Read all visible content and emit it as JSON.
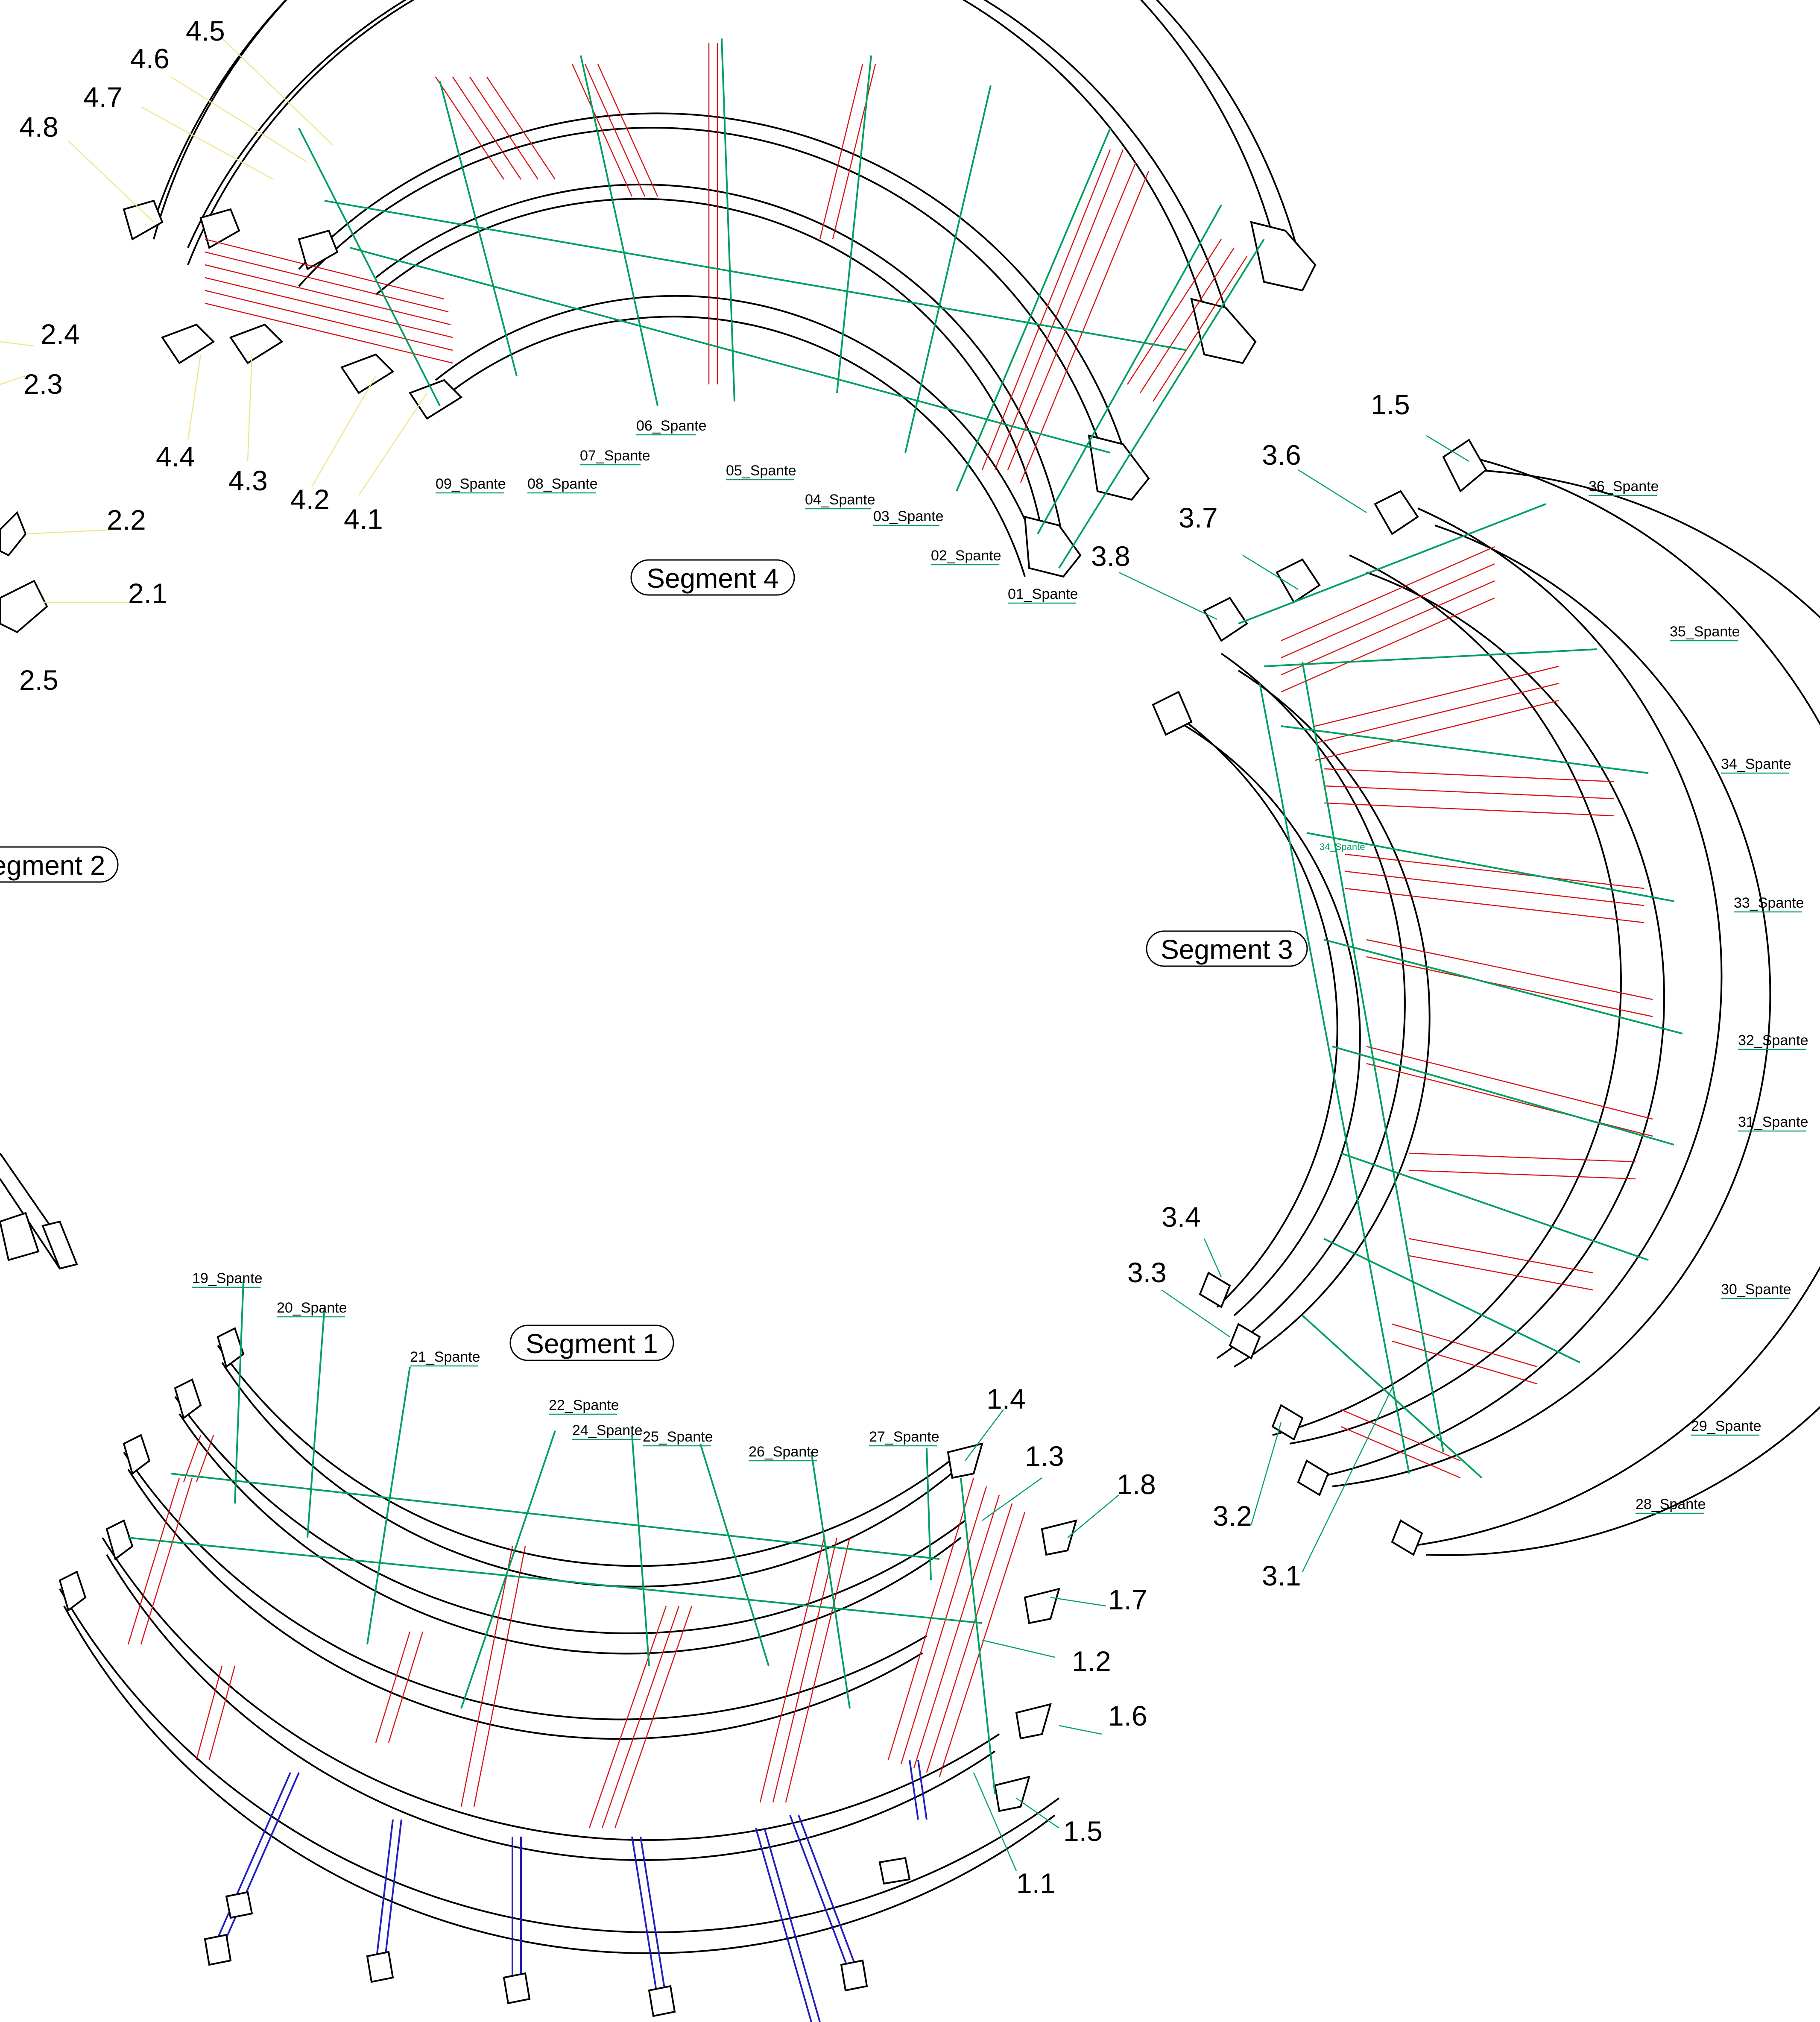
{
  "segments": {
    "seg1": "Segment 1",
    "seg2": "egment 2",
    "seg3": "Segment 3",
    "seg4": "Segment 4"
  },
  "labels": {
    "l4_5": "4.5",
    "l4_6": "4.6",
    "l4_7": "4.7",
    "l4_8": "4.8",
    "l2_4": "2.4",
    "l2_3": "2.3",
    "l2_2": "2.2",
    "l2_1": "2.1",
    "l2_5": "2.5",
    "l4_4": "4.4",
    "l4_3": "4.3",
    "l4_2": "4.2",
    "l4_1": "4.1",
    "l1_5a": "1.5",
    "l3_6": "3.6",
    "l3_7": "3.7",
    "l3_8": "3.8",
    "l3_4": "3.4",
    "l3_3": "3.3",
    "l3_2": "3.2",
    "l3_1": "3.1",
    "l1_4": "1.4",
    "l1_3": "1.3",
    "l1_8": "1.8",
    "l1_7": "1.7",
    "l1_2": "1.2",
    "l1_6": "1.6",
    "l1_5b": "1.5",
    "l1_1": "1.1"
  },
  "spante": {
    "s01": "01_Spante",
    "s02": "02_Spante",
    "s03": "03_Spante",
    "s04": "04_Spante",
    "s05": "05_Spante",
    "s06": "06_Spante",
    "s07": "07_Spante",
    "s08": "08_Spante",
    "s09": "09_Spante",
    "s19": "19_Spante",
    "s20": "20_Spante",
    "s21": "21_Spante",
    "s22": "22_Spante",
    "s24": "24_Spante",
    "s25": "25_Spante",
    "s26": "26_Spante",
    "s27": "27_Spante",
    "s28": "28_Spante",
    "s29": "29_Spante",
    "s30": "30_Spante",
    "s31": "31_Spante",
    "s32": "32_Spante",
    "s33": "33_Spante",
    "s34": "34_Spante",
    "s34b": "34_Spante",
    "s35": "35_Spante",
    "s36": "36_Spante"
  },
  "colors": {
    "frame": "#000000",
    "bracing": "#00a060",
    "hatch": "#d81414",
    "legs": "#2020c0"
  }
}
